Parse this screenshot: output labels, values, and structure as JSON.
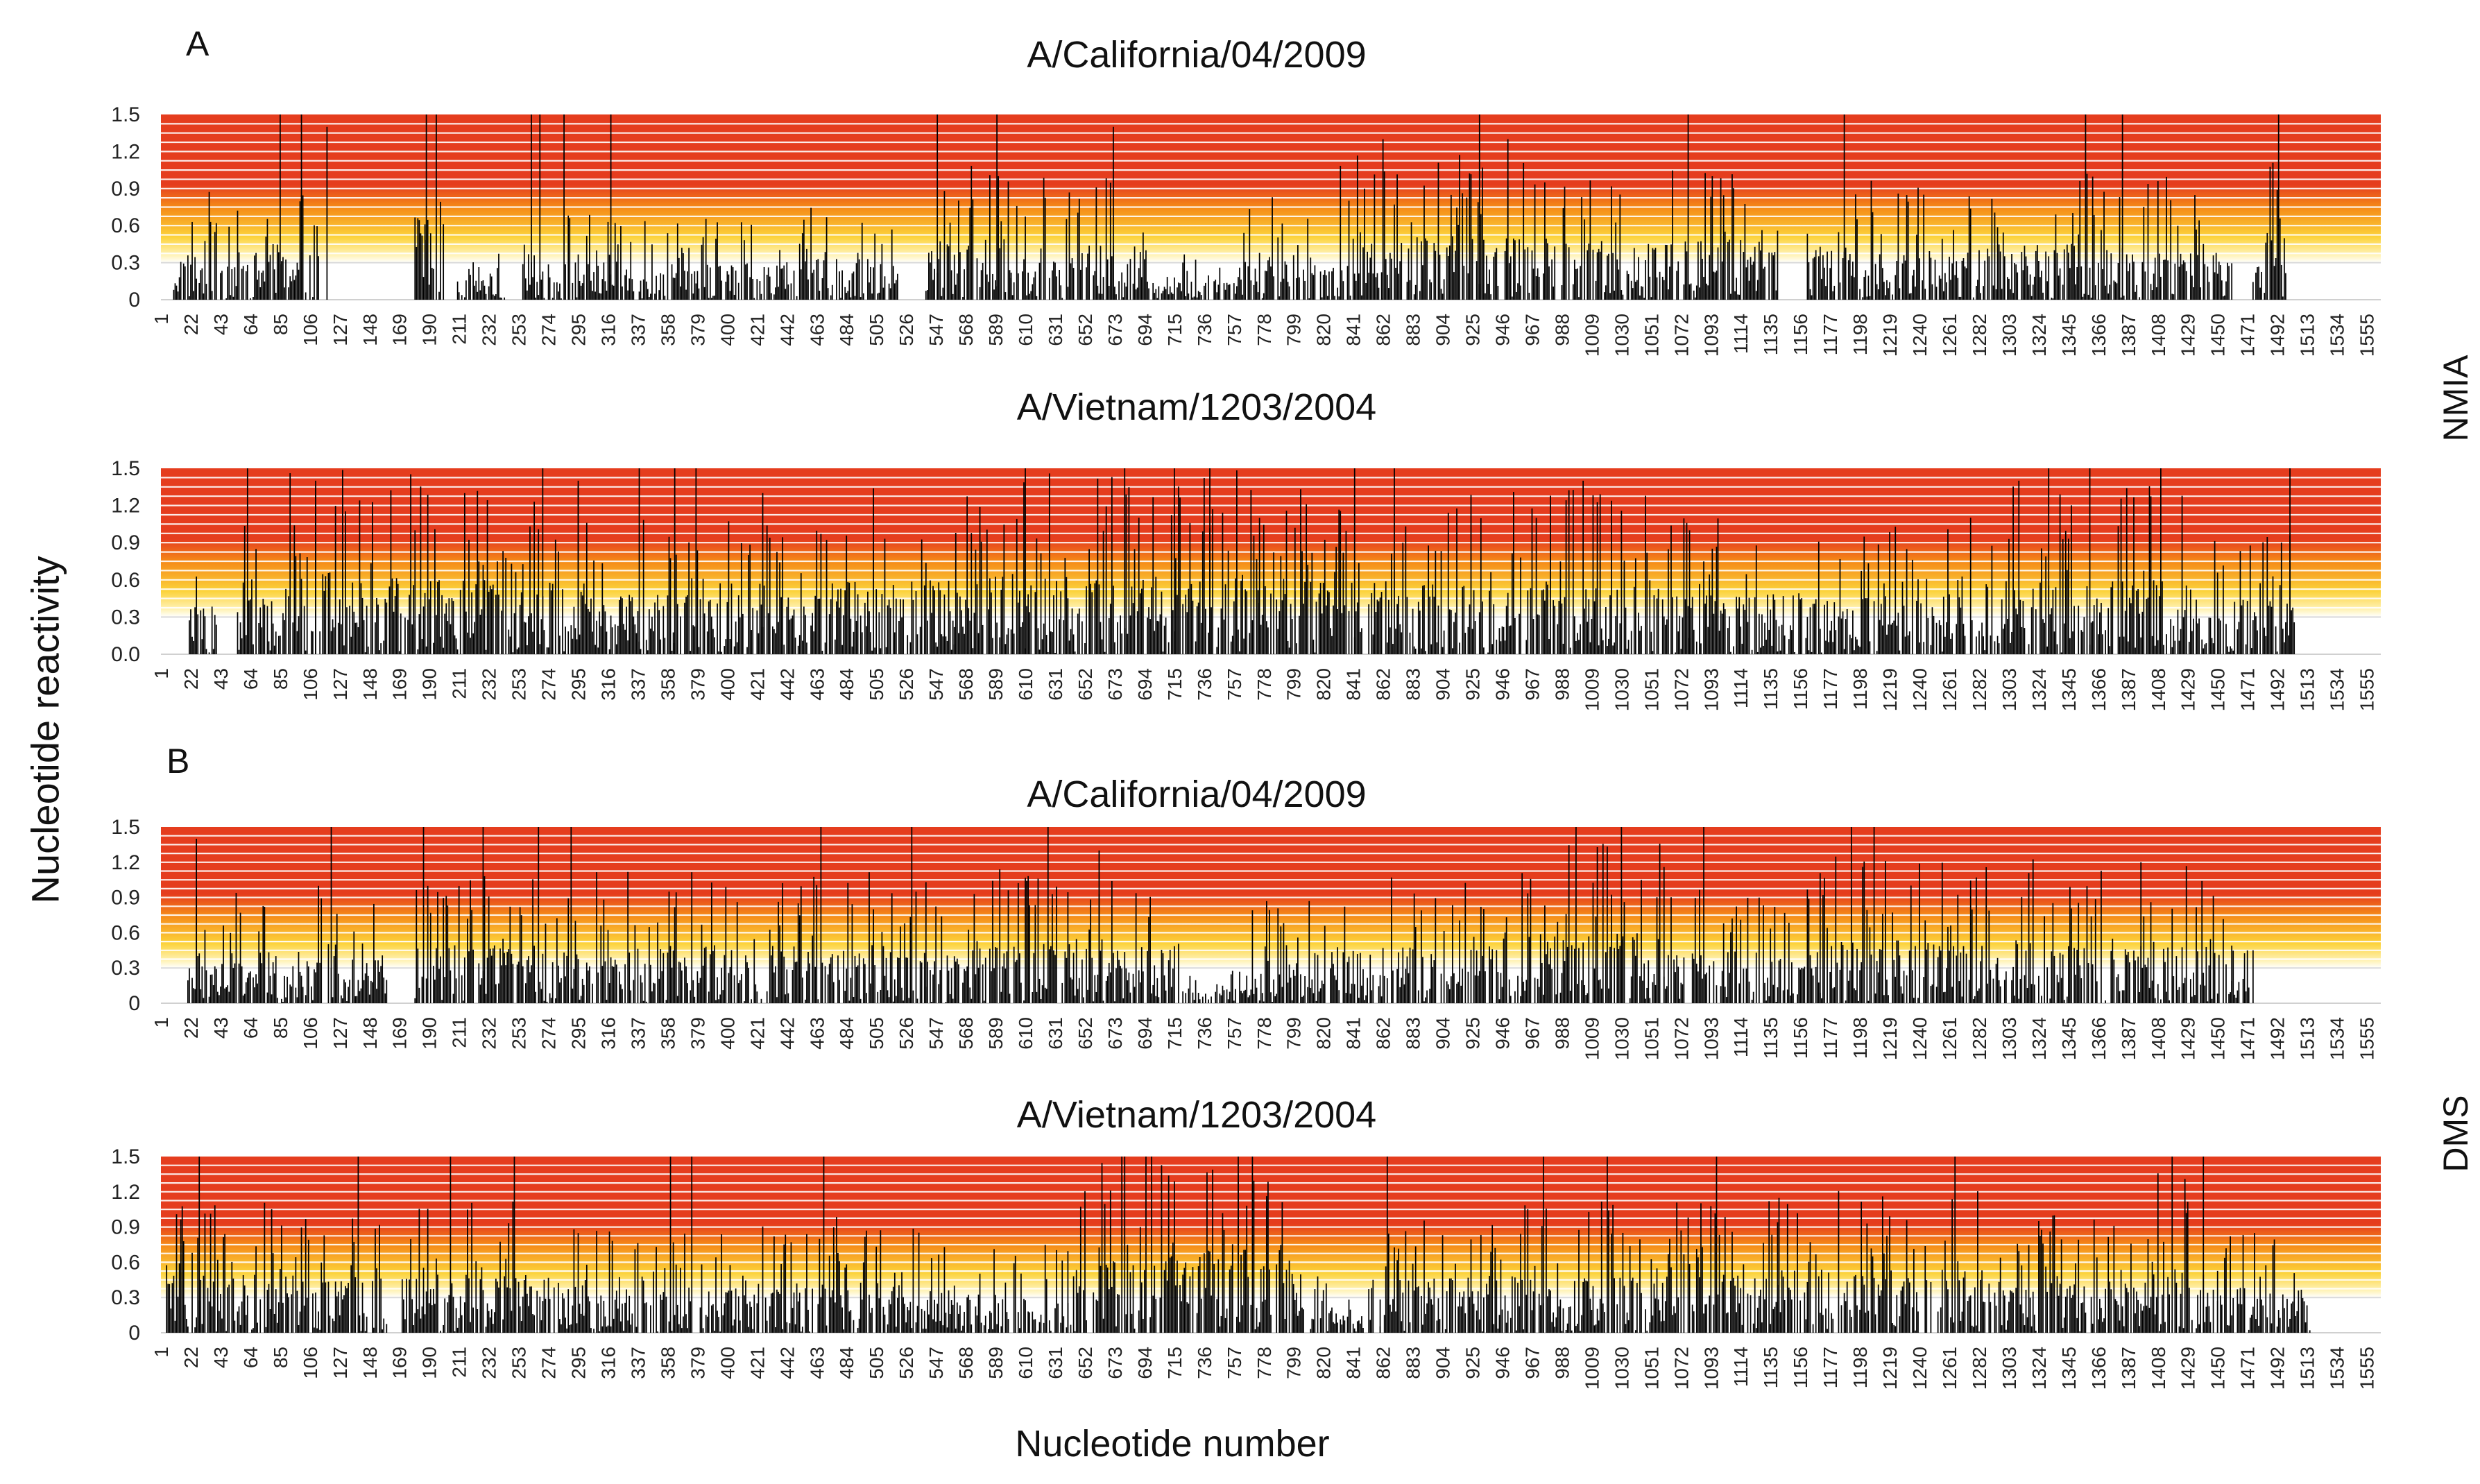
{
  "figure": {
    "panel_a_label": "A",
    "panel_b_label": "B",
    "reagent_top": "NMIA",
    "reagent_bottom": "DMS",
    "y_axis_title": "Nucleotide reactivity",
    "x_axis_title": "Nucleotide number"
  },
  "colors": {
    "band_high": "#e53d1e",
    "band_mid": "#f58a18",
    "band_low": "#fcd23a",
    "band_faint": "#fff3b8",
    "bar": "#000000",
    "gridline": "#ffffff"
  },
  "chart_data": [
    {
      "type": "bar",
      "title": "A/California/04/2009",
      "panel": "A",
      "reagent": "NMIA",
      "ylabel": "Nucleotide reactivity",
      "xlabel": "Nucleotide number",
      "ylim": [
        0,
        1.5
      ],
      "y_ticks": [
        "0",
        "0.3",
        "0.6",
        "0.9",
        "1.2",
        "1.5"
      ],
      "x_range": [
        1,
        1565
      ],
      "x_ticks": [
        "1",
        "22",
        "43",
        "64",
        "85",
        "106",
        "127",
        "148",
        "169",
        "190",
        "211",
        "232",
        "253",
        "274",
        "295",
        "316",
        "337",
        "358",
        "379",
        "400",
        "421",
        "442",
        "463",
        "484",
        "505",
        "526",
        "547",
        "568",
        "589",
        "610",
        "631",
        "652",
        "673",
        "694",
        "715",
        "736",
        "757",
        "778",
        "799",
        "820",
        "841",
        "862",
        "883",
        "904",
        "925",
        "946",
        "967",
        "988",
        "1009",
        "1030",
        "1051",
        "1072",
        "1093",
        "1114",
        "1135",
        "1156",
        "1177",
        "1198",
        "1219",
        "1240",
        "1261",
        "1282",
        "1303",
        "1324",
        "1345",
        "1366",
        "1387",
        "1408",
        "1429",
        "1450",
        "1471",
        "1492",
        "1513",
        "1534",
        "1555"
      ],
      "series_profile": "per-nucleotide reactivity; approximated envelope",
      "peaks": [
        [
          85,
          1.5
        ],
        [
          100,
          1.5
        ],
        [
          118,
          1.4
        ],
        [
          188,
          1.5
        ],
        [
          262,
          1.5
        ],
        [
          268,
          1.5
        ],
        [
          285,
          1.5
        ],
        [
          318,
          1.5
        ],
        [
          548,
          1.5
        ],
        [
          590,
          1.5
        ],
        [
          672,
          1.4
        ],
        [
          862,
          1.3
        ],
        [
          930,
          1.5
        ],
        [
          950,
          1.3
        ],
        [
          1077,
          1.5
        ],
        [
          1094,
          1.0
        ],
        [
          1187,
          1.5
        ],
        [
          1357,
          1.5
        ],
        [
          1383,
          1.5
        ],
        [
          1493,
          1.5
        ]
      ],
      "segments": [
        [
          10,
          112,
          0.35
        ],
        [
          180,
          200,
          0.75
        ],
        [
          210,
          245,
          0.15
        ],
        [
          255,
          440,
          0.28
        ],
        [
          440,
          520,
          0.3
        ],
        [
          540,
          600,
          0.45
        ],
        [
          600,
          700,
          0.4
        ],
        [
          700,
          760,
          0.18
        ],
        [
          760,
          830,
          0.35
        ],
        [
          830,
          970,
          0.5
        ],
        [
          970,
          1140,
          0.45
        ],
        [
          1160,
          1290,
          0.4
        ],
        [
          1290,
          1460,
          0.42
        ],
        [
          1475,
          1498,
          0.5
        ]
      ]
    },
    {
      "type": "bar",
      "title": "A/Vietnam/1203/2004",
      "panel": "A",
      "reagent": "NMIA",
      "ylabel": "Nucleotide reactivity",
      "xlabel": "Nucleotide number",
      "ylim": [
        0,
        1.5
      ],
      "y_ticks": [
        "0.0",
        "0.3",
        "0.6",
        "0.9",
        "1.2",
        "1.5"
      ],
      "x_range": [
        1,
        1565
      ],
      "x_ticks": [
        "1",
        "22",
        "43",
        "64",
        "85",
        "106",
        "127",
        "148",
        "169",
        "190",
        "211",
        "232",
        "253",
        "274",
        "295",
        "316",
        "337",
        "358",
        "379",
        "400",
        "421",
        "442",
        "463",
        "484",
        "505",
        "526",
        "547",
        "568",
        "589",
        "610",
        "631",
        "652",
        "673",
        "694",
        "715",
        "736",
        "757",
        "778",
        "799",
        "820",
        "841",
        "862",
        "883",
        "904",
        "925",
        "946",
        "967",
        "988",
        "1009",
        "1030",
        "1051",
        "1072",
        "1093",
        "1114",
        "1135",
        "1156",
        "1177",
        "1198",
        "1219",
        "1240",
        "1261",
        "1282",
        "1303",
        "1324",
        "1345",
        "1366",
        "1387",
        "1408",
        "1429",
        "1450",
        "1471",
        "1492",
        "1513",
        "1534",
        "1555"
      ],
      "series_profile": "per-nucleotide reactivity; approximated envelope",
      "peaks": [
        [
          62,
          1.5
        ],
        [
          110,
          1.4
        ],
        [
          180,
          1.0
        ],
        [
          215,
          1.3
        ],
        [
          270,
          1.5
        ],
        [
          295,
          1.4
        ],
        [
          338,
          1.5
        ],
        [
          363,
          1.5
        ],
        [
          378,
          1.5
        ],
        [
          425,
          1.3
        ],
        [
          610,
          1.5
        ],
        [
          680,
          1.5
        ],
        [
          715,
          1.5
        ],
        [
          740,
          1.5
        ],
        [
          775,
          1.1
        ],
        [
          842,
          1.5
        ],
        [
          870,
          1.5
        ],
        [
          1003,
          1.4
        ],
        [
          1078,
          1.0
        ],
        [
          1310,
          1.4
        ],
        [
          1331,
          1.5
        ],
        [
          1360,
          1.5
        ],
        [
          1410,
          1.5
        ],
        [
          1501,
          1.5
        ]
      ],
      "segments": [
        [
          20,
          40,
          0.35
        ],
        [
          55,
          180,
          0.6
        ],
        [
          180,
          300,
          0.55
        ],
        [
          300,
          470,
          0.45
        ],
        [
          470,
          560,
          0.55
        ],
        [
          560,
          800,
          0.6
        ],
        [
          800,
          1060,
          0.55
        ],
        [
          1060,
          1290,
          0.45
        ],
        [
          1290,
          1435,
          0.55
        ],
        [
          1435,
          1505,
          0.4
        ]
      ]
    },
    {
      "type": "bar",
      "title": "A/California/04/2009",
      "panel": "B",
      "reagent": "DMS",
      "ylabel": "Nucleotide reactivity",
      "xlabel": "Nucleotide number",
      "ylim": [
        0,
        1.5
      ],
      "y_ticks": [
        "0",
        "0.3",
        "0.6",
        "0.9",
        "1.2",
        "1.5"
      ],
      "x_range": [
        1,
        1565
      ],
      "x_ticks": [
        "1",
        "22",
        "43",
        "64",
        "85",
        "106",
        "127",
        "148",
        "169",
        "190",
        "211",
        "232",
        "253",
        "274",
        "295",
        "316",
        "337",
        "358",
        "379",
        "400",
        "421",
        "442",
        "463",
        "484",
        "505",
        "526",
        "547",
        "568",
        "589",
        "610",
        "631",
        "652",
        "673",
        "694",
        "715",
        "736",
        "757",
        "778",
        "799",
        "820",
        "841",
        "862",
        "883",
        "904",
        "925",
        "946",
        "967",
        "988",
        "1009",
        "1030",
        "1051",
        "1072",
        "1093",
        "1114",
        "1135",
        "1156",
        "1177",
        "1198",
        "1219",
        "1240",
        "1261",
        "1282",
        "1303",
        "1324",
        "1345",
        "1366",
        "1387",
        "1408",
        "1429",
        "1450",
        "1471",
        "1492",
        "1513",
        "1534",
        "1555"
      ],
      "series_profile": "per-nucleotide reactivity; approximated envelope",
      "peaks": [
        [
          26,
          1.4
        ],
        [
          121,
          1.5
        ],
        [
          186,
          1.5
        ],
        [
          228,
          1.5
        ],
        [
          267,
          1.5
        ],
        [
          290,
          1.5
        ],
        [
          466,
          1.5
        ],
        [
          530,
          1.5
        ],
        [
          626,
          1.5
        ],
        [
          662,
          1.3
        ],
        [
          998,
          1.5
        ],
        [
          1030,
          1.5
        ],
        [
          1088,
          1.5
        ],
        [
          1192,
          1.5
        ],
        [
          1208,
          1.5
        ],
        [
          1396,
          1.2
        ]
      ],
      "segments": [
        [
          20,
          160,
          0.4
        ],
        [
          180,
          440,
          0.45
        ],
        [
          440,
          540,
          0.45
        ],
        [
          540,
          720,
          0.5
        ],
        [
          720,
          770,
          0.12
        ],
        [
          770,
          960,
          0.45
        ],
        [
          960,
          1060,
          0.55
        ],
        [
          1060,
          1170,
          0.4
        ],
        [
          1170,
          1460,
          0.5
        ],
        [
          1460,
          1475,
          0.2
        ]
      ]
    },
    {
      "type": "bar",
      "title": "A/Vietnam/1203/2004",
      "panel": "B",
      "reagent": "DMS",
      "ylabel": "Nucleotide reactivity",
      "xlabel": "Nucleotide number",
      "ylim": [
        0,
        1.5
      ],
      "y_ticks": [
        "0",
        "0.3",
        "0.6",
        "0.9",
        "1.2",
        "1.5"
      ],
      "x_range": [
        1,
        1565
      ],
      "x_ticks": [
        "1",
        "22",
        "43",
        "64",
        "85",
        "106",
        "127",
        "148",
        "169",
        "190",
        "211",
        "232",
        "253",
        "274",
        "295",
        "316",
        "337",
        "358",
        "379",
        "400",
        "421",
        "442",
        "463",
        "484",
        "505",
        "526",
        "547",
        "568",
        "589",
        "610",
        "631",
        "652",
        "673",
        "694",
        "715",
        "736",
        "757",
        "778",
        "799",
        "820",
        "841",
        "862",
        "883",
        "904",
        "925",
        "946",
        "967",
        "988",
        "1009",
        "1030",
        "1051",
        "1072",
        "1093",
        "1114",
        "1135",
        "1156",
        "1177",
        "1198",
        "1219",
        "1240",
        "1261",
        "1282",
        "1303",
        "1324",
        "1345",
        "1366",
        "1387",
        "1408",
        "1429",
        "1450",
        "1471",
        "1492",
        "1513",
        "1534",
        "1555"
      ],
      "series_profile": "per-nucleotide reactivity; approximated envelope",
      "peaks": [
        [
          28,
          1.5
        ],
        [
          140,
          1.5
        ],
        [
          205,
          1.5
        ],
        [
          250,
          1.5
        ],
        [
          360,
          1.5
        ],
        [
          375,
          1.5
        ],
        [
          468,
          1.5
        ],
        [
          680,
          1.5
        ],
        [
          760,
          1.5
        ],
        [
          865,
          1.5
        ],
        [
          975,
          1.5
        ],
        [
          1020,
          1.5
        ],
        [
          1097,
          1.5
        ],
        [
          1265,
          1.5
        ],
        [
          1418,
          1.5
        ],
        [
          1440,
          1.5
        ]
      ],
      "segments": [
        [
          5,
          160,
          0.45
        ],
        [
          170,
          300,
          0.45
        ],
        [
          300,
          420,
          0.35
        ],
        [
          420,
          560,
          0.4
        ],
        [
          560,
          640,
          0.3
        ],
        [
          640,
          800,
          0.7
        ],
        [
          800,
          860,
          0.2
        ],
        [
          860,
          1140,
          0.45
        ],
        [
          1140,
          1290,
          0.5
        ],
        [
          1290,
          1400,
          0.4
        ],
        [
          1400,
          1450,
          0.55
        ],
        [
          1450,
          1515,
          0.35
        ]
      ]
    }
  ]
}
